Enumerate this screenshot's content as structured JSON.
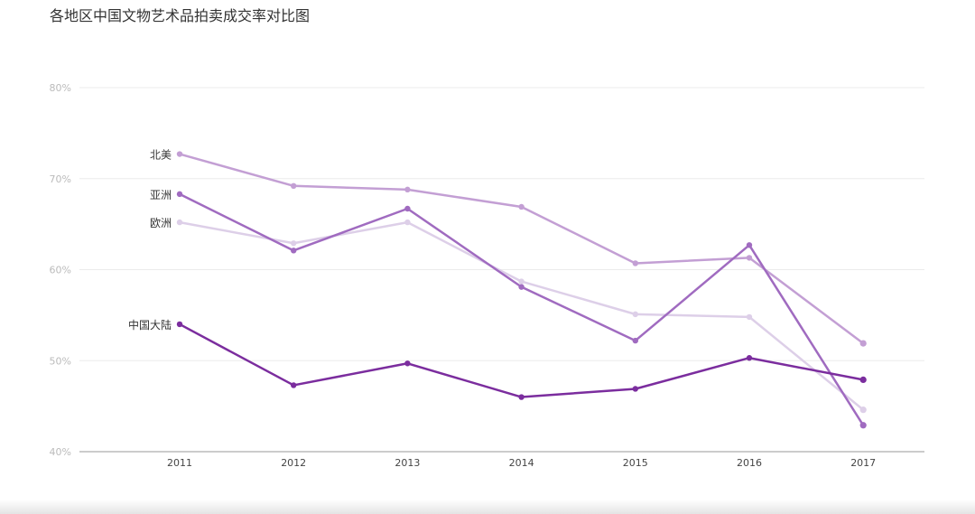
{
  "chart_data": {
    "type": "line",
    "title": "各地区中国文物艺术品拍卖成交率对比图",
    "categories": [
      "2011",
      "2012",
      "2013",
      "2014",
      "2015",
      "2016",
      "2017"
    ],
    "y_ticks": [
      40,
      50,
      60,
      70,
      80
    ],
    "y_tick_labels": [
      "40%",
      "50%",
      "60%",
      "70%",
      "80%"
    ],
    "ylim": [
      40,
      80
    ],
    "grid": true,
    "legend": "inline labels at start of each line",
    "series": [
      {
        "name": "欧洲",
        "color": "#ddcfe8",
        "values": [
          65.2,
          62.9,
          65.2,
          58.7,
          55.1,
          54.8,
          44.6
        ]
      },
      {
        "name": "北美",
        "color": "#c39fd4",
        "values": [
          72.7,
          69.2,
          68.8,
          66.9,
          60.7,
          61.3,
          51.9
        ]
      },
      {
        "name": "亚洲",
        "color": "#a06bc0",
        "values": [
          68.3,
          62.1,
          66.7,
          58.1,
          52.2,
          62.7,
          42.9
        ]
      },
      {
        "name": "中国大陆",
        "color": "#7b2d9e",
        "values": [
          54.0,
          47.3,
          49.7,
          46.0,
          46.9,
          50.3,
          47.9
        ]
      }
    ]
  }
}
